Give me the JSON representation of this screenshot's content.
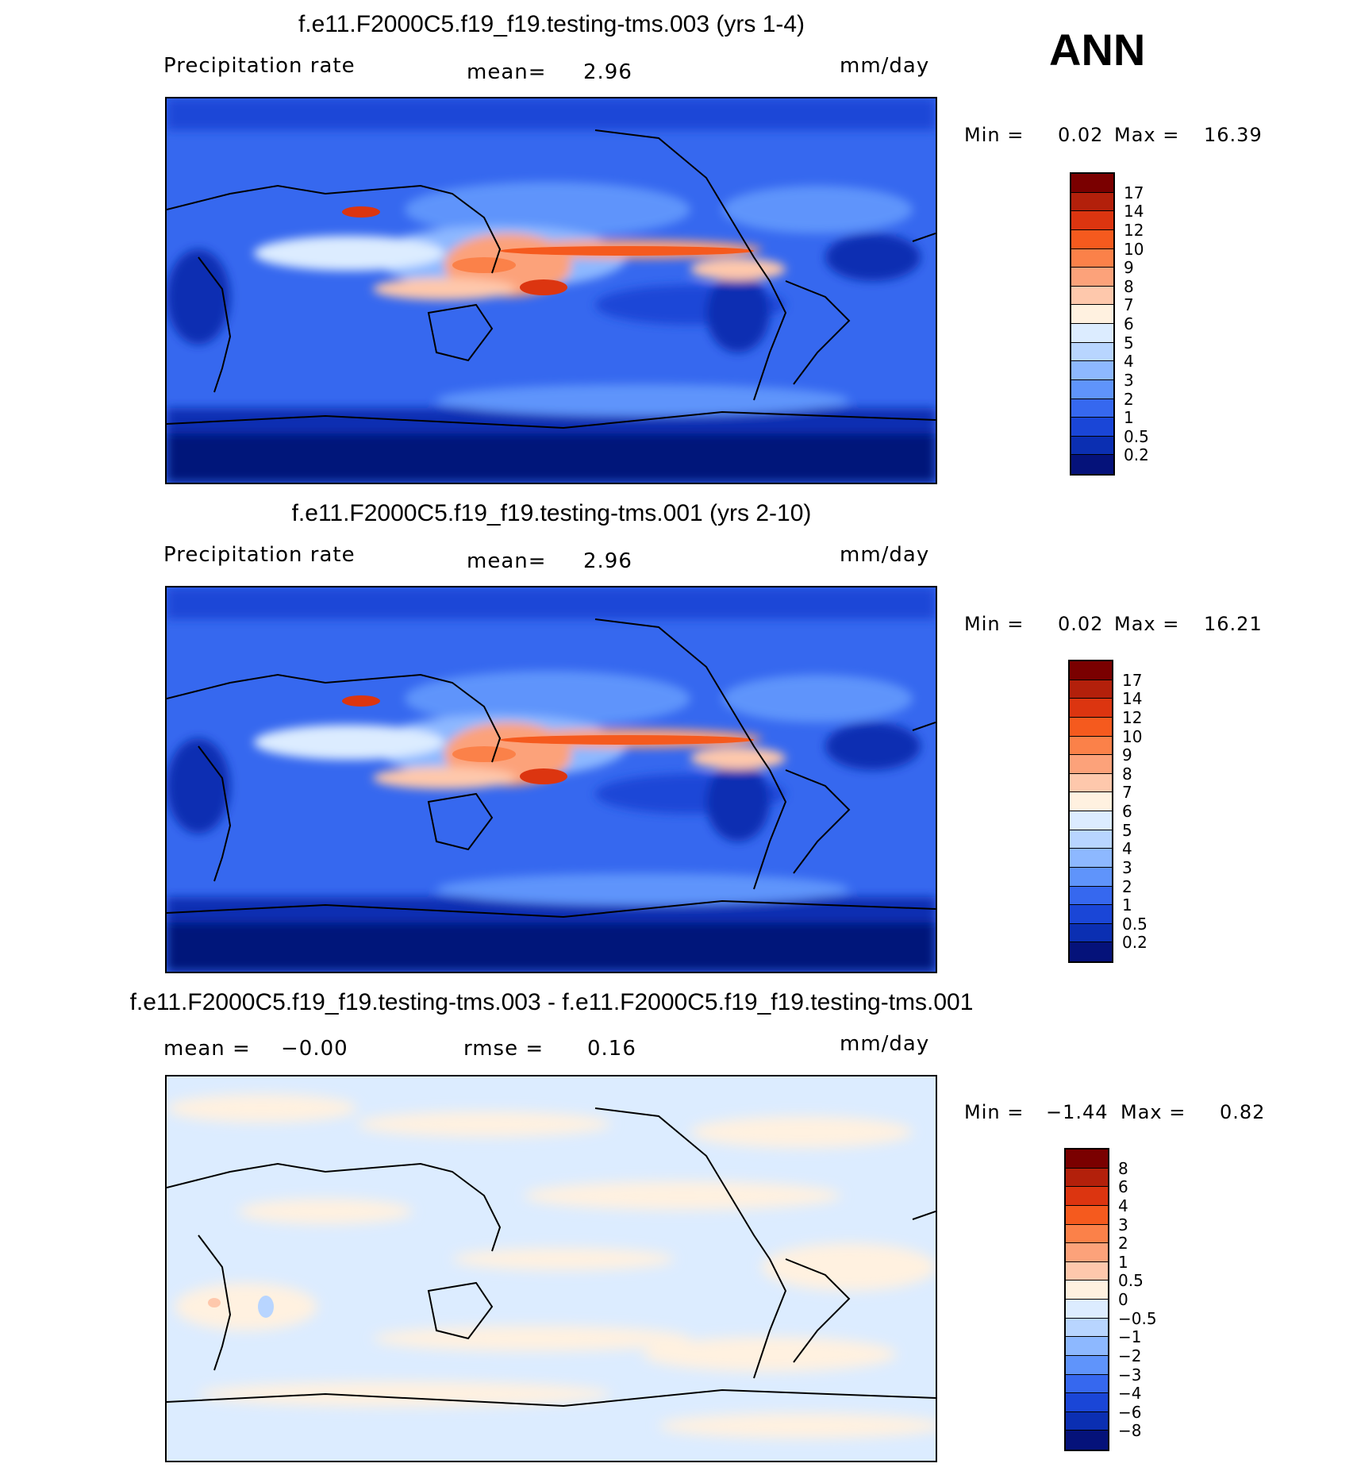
{
  "season": "ANN",
  "panels": [
    {
      "title": "f.e11.F2000C5.f19_f19.testing-tms.003 (yrs 1-4)",
      "left_label": "Precipitation  rate",
      "center_label": "mean=",
      "center_value": "2.96",
      "units": "mm/day",
      "min_label": "Min =",
      "min_value": "0.02",
      "max_label": "Max =",
      "max_value": "16.39",
      "colorbar_labels": [
        "17",
        "14",
        "12",
        "10",
        "9",
        "8",
        "7",
        "6",
        "5",
        "4",
        "3",
        "2",
        "1",
        "0.5",
        "0.2"
      ],
      "colorbar_colors": [
        "#7a0000",
        "#b3200b",
        "#dc3510",
        "#f55a1e",
        "#fb8149",
        "#fca27a",
        "#fec8ac",
        "#fff1e0",
        "#dcecff",
        "#b8d5ff",
        "#8db8ff",
        "#5f94fb",
        "#3668ef",
        "#1a46d7",
        "#0b2fb2",
        "#05127a"
      ]
    },
    {
      "title": "f.e11.F2000C5.f19_f19.testing-tms.001 (yrs 2-10)",
      "left_label": "Precipitation  rate",
      "center_label": "mean=",
      "center_value": "2.96",
      "units": "mm/day",
      "min_label": "Min =",
      "min_value": "0.02",
      "max_label": "Max =",
      "max_value": "16.21",
      "colorbar_labels": [
        "17",
        "14",
        "12",
        "10",
        "9",
        "8",
        "7",
        "6",
        "5",
        "4",
        "3",
        "2",
        "1",
        "0.5",
        "0.2"
      ],
      "colorbar_colors": [
        "#7a0000",
        "#b3200b",
        "#dc3510",
        "#f55a1e",
        "#fb8149",
        "#fca27a",
        "#fec8ac",
        "#fff1e0",
        "#dcecff",
        "#b8d5ff",
        "#8db8ff",
        "#5f94fb",
        "#3668ef",
        "#1a46d7",
        "#0b2fb2",
        "#05127a"
      ]
    },
    {
      "title": "f.e11.F2000C5.f19_f19.testing-tms.003 - f.e11.F2000C5.f19_f19.testing-tms.001",
      "left_label": "mean =",
      "left_value": "−0.00",
      "center_label": "rmse =",
      "center_value": "0.16",
      "units": "mm/day",
      "min_label": "Min =",
      "min_value": "−1.44",
      "max_label": "Max =",
      "max_value": "0.82",
      "colorbar_labels": [
        "8",
        "6",
        "4",
        "3",
        "2",
        "1",
        "0.5",
        "0",
        "−0.5",
        "−1",
        "−2",
        "−3",
        "−4",
        "−6",
        "−8"
      ],
      "colorbar_colors": [
        "#7a0000",
        "#b3200b",
        "#dc3510",
        "#f55a1e",
        "#fb8149",
        "#fca27a",
        "#fec8ac",
        "#fff1e0",
        "#dcecff",
        "#b8d5ff",
        "#8db8ff",
        "#5f94fb",
        "#3668ef",
        "#1a46d7",
        "#0b2fb2",
        "#05127a"
      ]
    }
  ]
}
